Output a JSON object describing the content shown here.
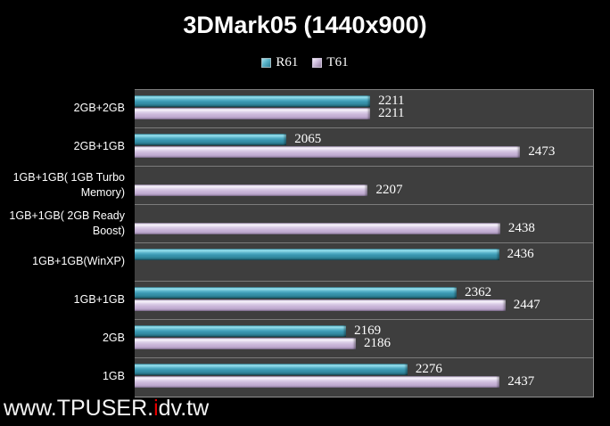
{
  "title": "3DMark05 (1440x900)",
  "colors": {
    "background": "#000000",
    "plot_background": "#3e3e3e",
    "band_separator": "#7b7b7b",
    "r61_bar": "#3a96b0",
    "t61_bar": "#cbb8da",
    "value_label": "#ffffff",
    "watermark_red": "#e60000"
  },
  "watermark": {
    "text": "www.TPUSER.idv.tw",
    "prefix": "www.TPUSER.",
    "red_letter": "i",
    "suffix": "dv.tw"
  },
  "chart_data": {
    "type": "bar",
    "orientation": "horizontal",
    "title": "3DMark05 (1440x900)",
    "legend_position": "top",
    "grid": false,
    "xlim": [
      1800,
      2600
    ],
    "categories": [
      "2GB+2GB",
      "2GB+1GB",
      "1GB+1GB( 1GB Turbo Memory)",
      "1GB+1GB( 2GB Ready Boost)",
      "1GB+1GB(WinXP)",
      "1GB+1GB",
      "2GB",
      "1GB"
    ],
    "series": [
      {
        "name": "R61",
        "color": "#3a96b0",
        "values": [
          2211,
          2065,
          null,
          null,
          2436,
          2362,
          2169,
          2276
        ]
      },
      {
        "name": "T61",
        "color": "#cbb8da",
        "values": [
          2211,
          2473,
          2207,
          2438,
          null,
          2447,
          2186,
          2437
        ]
      }
    ]
  }
}
